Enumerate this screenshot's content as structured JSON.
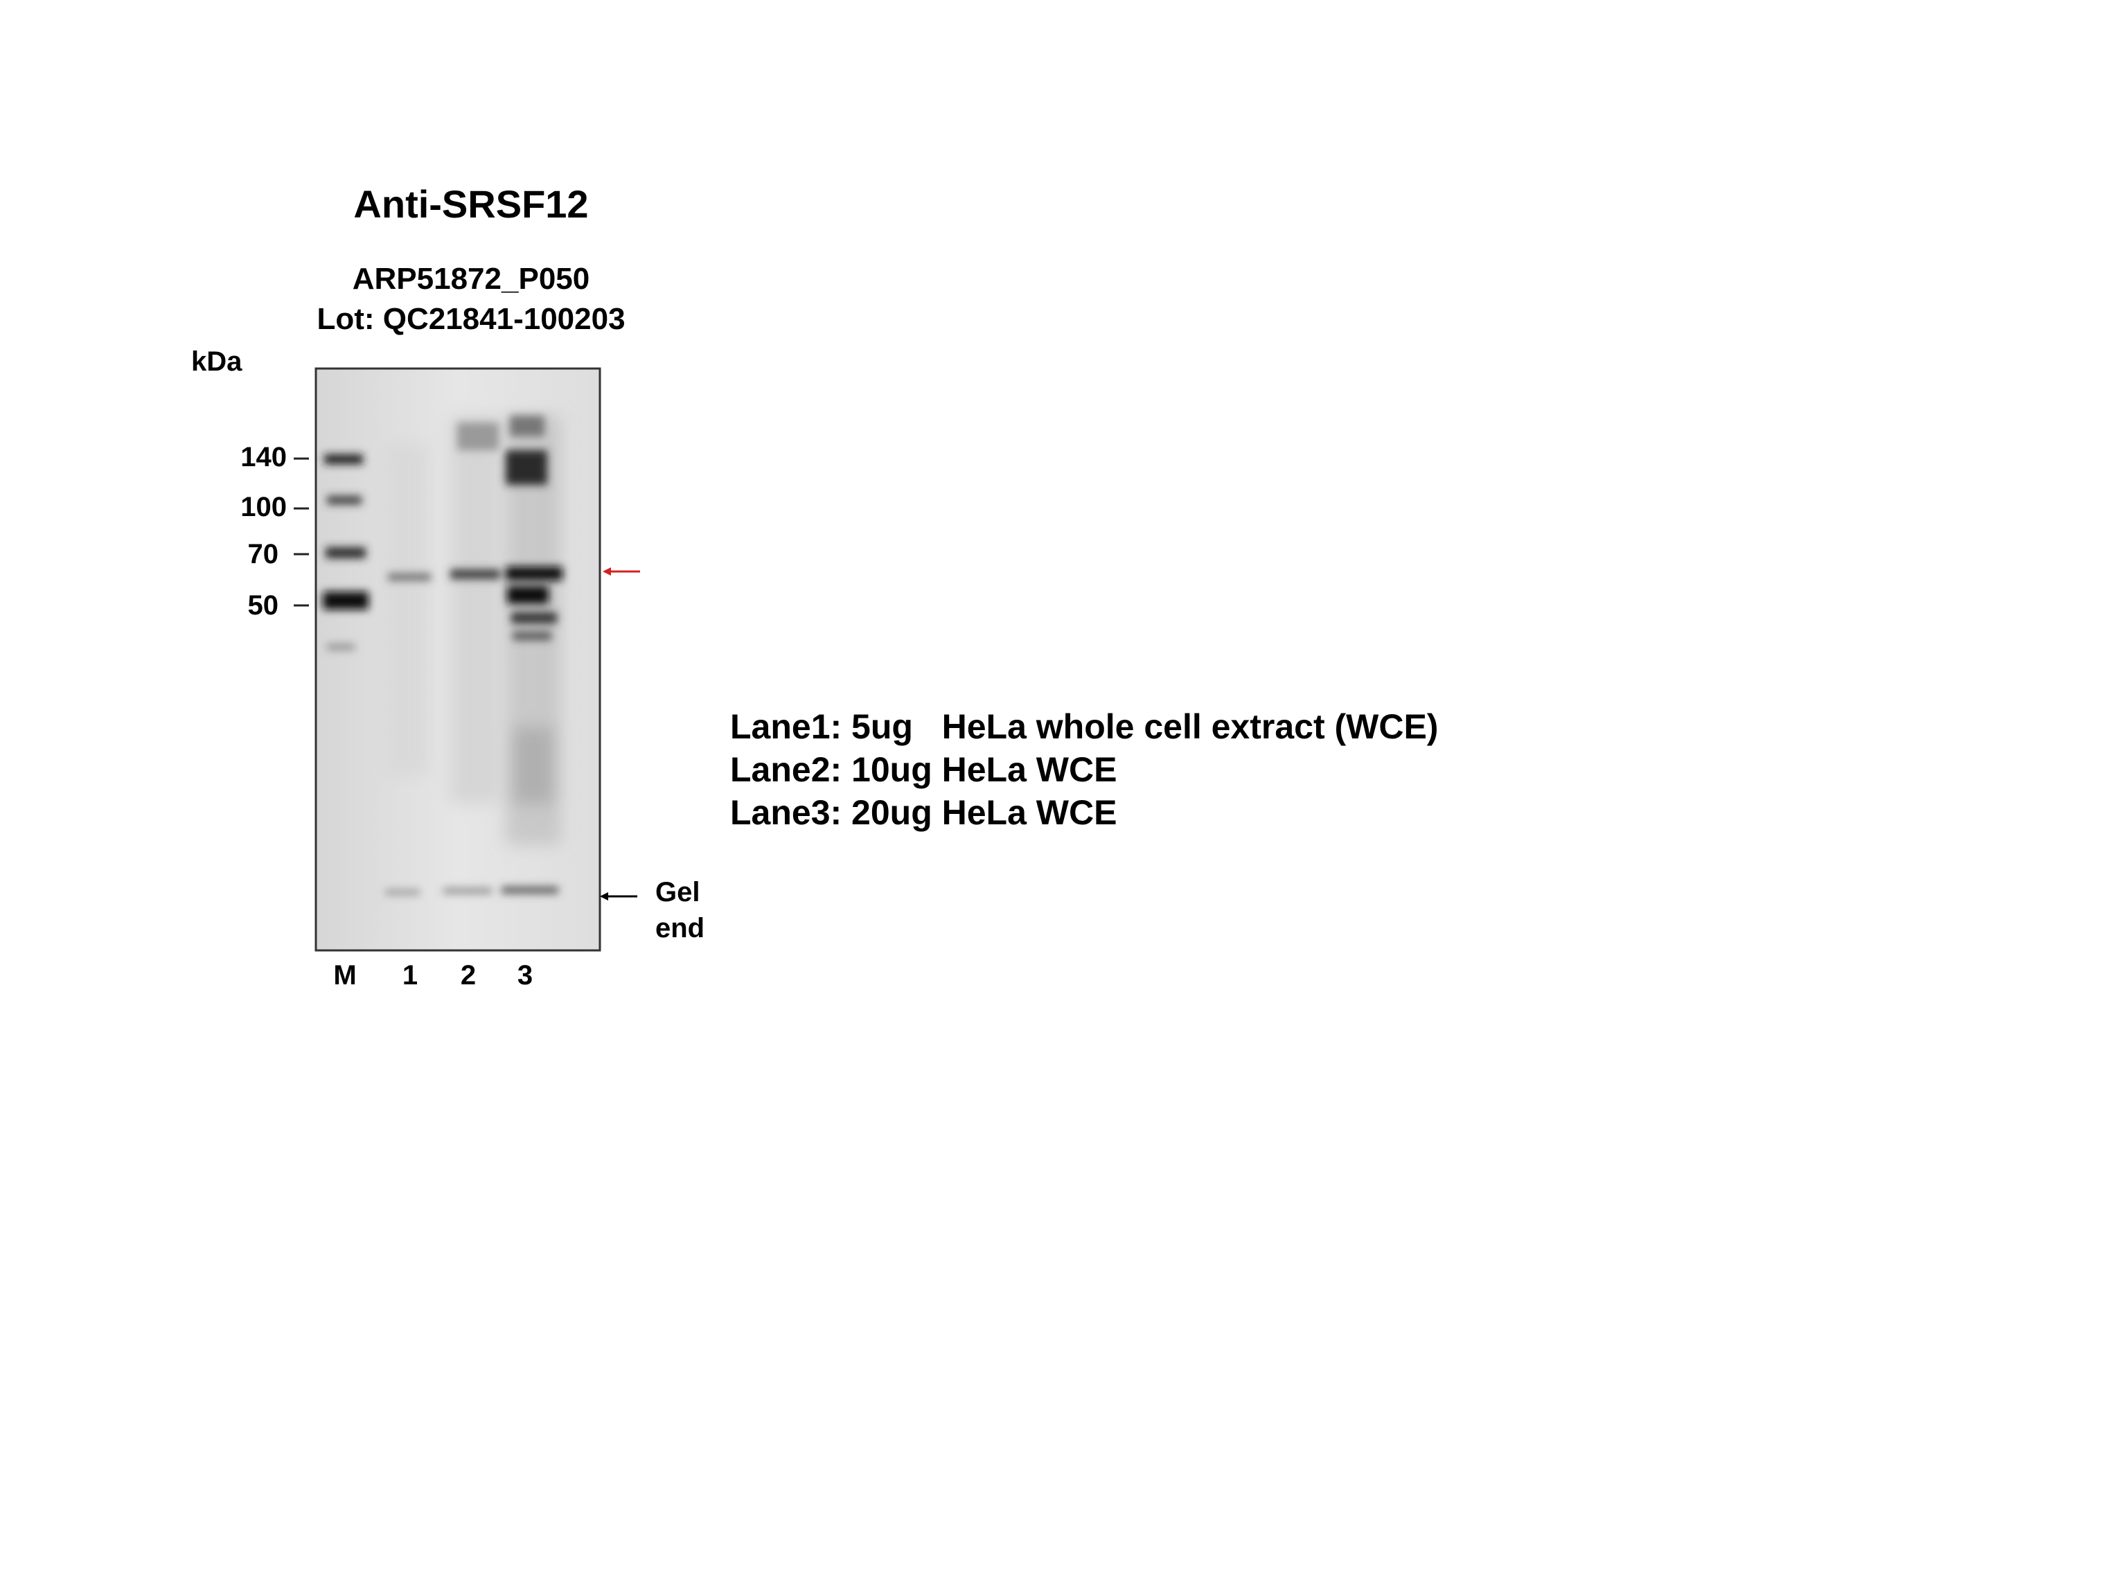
{
  "title": "Anti-SRSF12",
  "catalog": "ARP51872_P050",
  "lot": "Lot: QC21841-100203",
  "kda_label": "kDa",
  "markers": [
    "140",
    "100",
    "70",
    "50"
  ],
  "lanes": [
    "M",
    "1",
    "2",
    "3"
  ],
  "gel_end_label": "Gel end",
  "legend": [
    "Lane1: 5ug   HeLa whole cell extract (WCE)",
    "Lane2: 10ug HeLa WCE",
    "Lane3: 20ug HeLa WCE"
  ],
  "colors": {
    "target_arrow": "#d42020",
    "gel_end_arrow": "#000000",
    "membrane": "#e3e3e3"
  }
}
